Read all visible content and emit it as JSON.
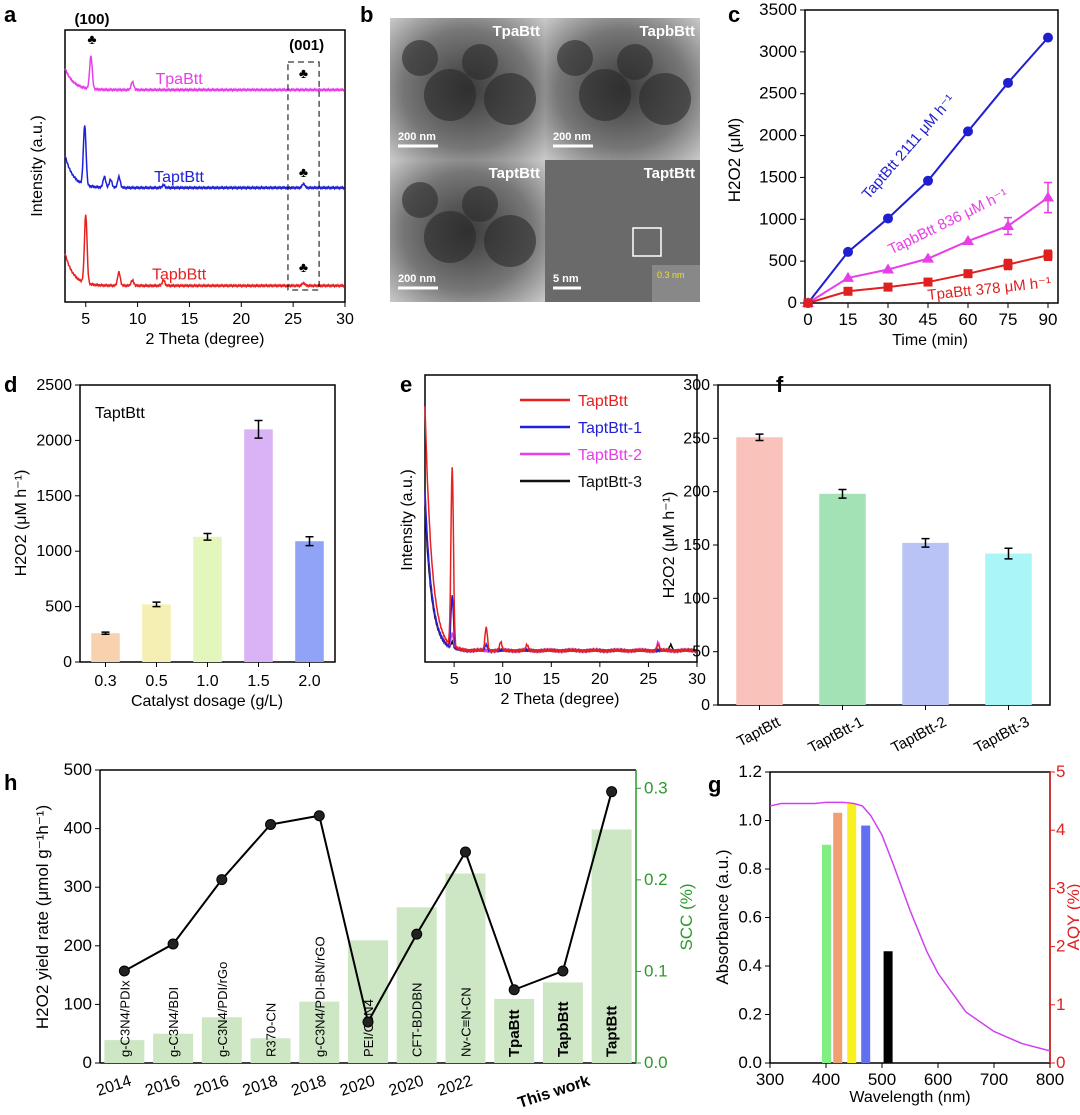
{
  "panel_labels": [
    "a",
    "b",
    "c",
    "d",
    "e",
    "f",
    "h",
    "g"
  ],
  "chart_data": [
    {
      "id": "a",
      "type": "line",
      "xlabel": "2 Theta (degree)",
      "ylabel": "Intensity (a.u.)",
      "xlim": [
        3,
        30
      ],
      "xticks": [
        5,
        10,
        15,
        20,
        25,
        30
      ],
      "annotations": [
        "(100)",
        "(001)",
        "♣"
      ],
      "series": [
        {
          "name": "TpaBtt",
          "color": "#e83ee8",
          "offset": 0.78,
          "peaks": [
            [
              5.5,
              0.12
            ],
            [
              9.5,
              0.03
            ]
          ],
          "base": 0.08
        },
        {
          "name": "TaptBtt",
          "color": "#2020d8",
          "offset": 0.42,
          "peaks": [
            [
              4.9,
              0.22
            ],
            [
              6.8,
              0.04
            ],
            [
              7.4,
              0.03
            ],
            [
              8.2,
              0.04
            ],
            [
              12.5,
              0.01
            ],
            [
              26,
              0.015
            ]
          ],
          "base": 0.12
        },
        {
          "name": "TapbBtt",
          "color": "#e82020",
          "offset": 0.06,
          "peaks": [
            [
              5.0,
              0.25
            ],
            [
              8.2,
              0.05
            ],
            [
              9.5,
              0.02
            ],
            [
              12.5,
              0.02
            ],
            [
              26,
              0.01
            ]
          ],
          "base": 0.12
        }
      ]
    },
    {
      "id": "c",
      "type": "line",
      "xlabel": "Time (min)",
      "ylabel": "H2O2 (μM)",
      "xlim": [
        0,
        90
      ],
      "ylim": [
        0,
        3500
      ],
      "x": [
        0,
        15,
        30,
        45,
        60,
        75,
        90
      ],
      "series": [
        {
          "name": "TaptBtt",
          "label": "TaptBtt 2111 μM h⁻¹",
          "color": "#1f1fd0",
          "marker": "circle",
          "values": [
            0,
            610,
            1010,
            1460,
            2050,
            2630,
            3170
          ],
          "err": [
            0,
            0,
            30,
            0,
            0,
            0,
            0
          ]
        },
        {
          "name": "TapbBtt",
          "label": "TapbBtt 836 μM h⁻¹",
          "color": "#e83ee8",
          "marker": "triangle",
          "values": [
            0,
            300,
            400,
            530,
            740,
            920,
            1260
          ],
          "err": [
            0,
            0,
            0,
            0,
            0,
            100,
            180
          ]
        },
        {
          "name": "TpaBtt",
          "label": "TpaBtt 378  μM h⁻¹",
          "color": "#e02020",
          "marker": "square",
          "values": [
            0,
            140,
            190,
            250,
            350,
            460,
            570
          ],
          "err": [
            0,
            0,
            0,
            0,
            0,
            60,
            60
          ]
        }
      ]
    },
    {
      "id": "d",
      "type": "bar",
      "title": "TaptBtt",
      "xlabel": "Catalyst dosage (g/L)",
      "ylabel": "H2O2 (μM h⁻¹)",
      "ylim": [
        0,
        2500
      ],
      "yticks": [
        0,
        500,
        1000,
        1500,
        2000,
        2500
      ],
      "categories": [
        "0.3",
        "0.5",
        "1.0",
        "1.5",
        "2.0"
      ],
      "values": [
        260,
        520,
        1130,
        2100,
        1090
      ],
      "err": [
        10,
        20,
        30,
        80,
        40
      ],
      "colors": [
        "#f8d2ae",
        "#f5efb4",
        "#e3f6bb",
        "#d9b3f6",
        "#91a3f6"
      ]
    },
    {
      "id": "e",
      "type": "line",
      "xlabel": "2 Theta (degree)",
      "ylabel": "Intensity (a.u.)",
      "xlim": [
        2,
        30
      ],
      "xticks": [
        5,
        10,
        15,
        20,
        25,
        30
      ],
      "series": [
        {
          "name": "TaptBtt",
          "color": "#e82020",
          "peaks": [
            [
              4.8,
              0.62
            ],
            [
              8.3,
              0.08
            ],
            [
              9.8,
              0.03
            ],
            [
              12.5,
              0.02
            ],
            [
              26,
              0.02
            ]
          ],
          "start": 0.85
        },
        {
          "name": "TaptBtt-1",
          "color": "#2020d8",
          "peaks": [
            [
              4.8,
              0.18
            ],
            [
              8.3,
              0.02
            ]
          ],
          "start": 0.55
        },
        {
          "name": "TaptBtt-2",
          "color": "#e83ee8",
          "peaks": [
            [
              4.8,
              0.05
            ],
            [
              26,
              0.03
            ]
          ],
          "start": 0.55
        },
        {
          "name": "TaptBtt-3",
          "color": "#111111",
          "peaks": [
            [
              4.8,
              0.02
            ],
            [
              27.3,
              0.02
            ]
          ],
          "start": 0.5
        }
      ]
    },
    {
      "id": "f",
      "type": "bar",
      "ylabel": "H2O2 (μM h⁻¹)",
      "ylim": [
        0,
        300
      ],
      "yticks": [
        0,
        50,
        100,
        150,
        200,
        250,
        300
      ],
      "categories": [
        "TaptBtt",
        "TaptBtt-1",
        "TaptBtt-2",
        "TaptBtt-3"
      ],
      "values": [
        251,
        198,
        152,
        142
      ],
      "err": [
        3,
        4,
        4,
        5
      ],
      "colors": [
        "#f9c3bb",
        "#a2e2b4",
        "#bac3f6",
        "#aaf5f5"
      ]
    },
    {
      "id": "h",
      "type": "bar+line",
      "ylabel": "H2O2 yield rate (μmol g⁻¹h⁻¹)",
      "y2label": "SCC (%)",
      "ylim": [
        0,
        500
      ],
      "yticks": [
        0,
        100,
        200,
        300,
        400,
        500
      ],
      "y2lim": [
        0,
        0.32
      ],
      "y2ticks": [
        "0.0",
        "0.1",
        "0.2",
        "0.3"
      ],
      "categories": [
        "g-C3N4/PDIx",
        "g-C3N4/BDI",
        "g-C3N4/PDI/rGo",
        "R370-CN",
        "g-C3N4/PDI-BN/rGO",
        "PEI/C3N4",
        "CFT-BDDBN",
        "Nv-C≡N-CN",
        "TpaBtt",
        "TapbBtt",
        "TaptBtt"
      ],
      "years": [
        "2014",
        "2016",
        "2016",
        "2018",
        "2018",
        "2020",
        "2020",
        "2022",
        "",
        "This work",
        ""
      ],
      "bold": [
        false,
        false,
        false,
        false,
        false,
        false,
        false,
        false,
        true,
        true,
        true
      ],
      "bar_color": "#cde6c3",
      "scc": [
        0.025,
        0.032,
        0.05,
        0.027,
        0.067,
        0.134,
        0.17,
        0.207,
        0.07,
        0.088,
        0.255
      ],
      "yield": [
        157,
        203,
        313,
        407,
        422,
        70,
        220,
        360,
        125,
        157,
        463
      ]
    },
    {
      "id": "g",
      "type": "line+bar",
      "xlabel": "Wavelength (nm)",
      "ylabel": "Absorbance (a.u.)",
      "y2label": "AQY (%)",
      "xlim": [
        300,
        800
      ],
      "ylim": [
        0,
        1.2
      ],
      "y2lim": [
        0,
        5
      ],
      "xticks": [
        300,
        400,
        500,
        600,
        700,
        800
      ],
      "yticks": [
        "0.0",
        "0.2",
        "0.4",
        "0.6",
        "0.8",
        "1.0",
        "1.2"
      ],
      "y2ticks": [
        0,
        1,
        2,
        3,
        4,
        5
      ],
      "absorbance": {
        "color": "#d040f0",
        "x": [
          300,
          320,
          350,
          380,
          400,
          430,
          450,
          465,
          480,
          500,
          520,
          550,
          580,
          600,
          650,
          700,
          750,
          800
        ],
        "y": [
          1.06,
          1.07,
          1.07,
          1.07,
          1.075,
          1.075,
          1.07,
          1.06,
          1.02,
          0.94,
          0.82,
          0.63,
          0.46,
          0.37,
          0.21,
          0.13,
          0.08,
          0.05
        ]
      },
      "aqy_bars": {
        "wavelengths": [
          400,
          420,
          445,
          470,
          510
        ],
        "values": [
          3.75,
          4.3,
          4.45,
          4.08,
          1.92
        ],
        "colors": [
          "#80ee80",
          "#f0a070",
          "#f8f020",
          "#6070f0",
          "#000000"
        ]
      }
    }
  ],
  "tem": {
    "images": [
      {
        "label": "TpaBtt",
        "scale": "200 nm"
      },
      {
        "label": "TapbBtt",
        "scale": "200 nm"
      },
      {
        "label": "TaptBtt",
        "scale": "200 nm"
      },
      {
        "label": "TaptBtt",
        "scale": "5 nm",
        "inset": "0.3 nm"
      }
    ]
  }
}
